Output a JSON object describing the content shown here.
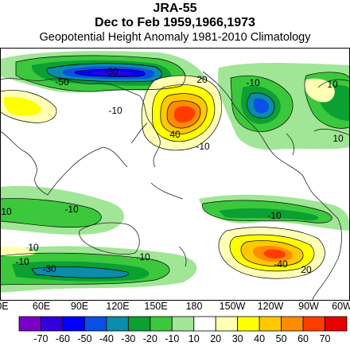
{
  "header": {
    "dataset": "JRA-55",
    "period": "Dec to Feb 1959,1966,1973",
    "subtitle": "Geopotential Height Anomaly  1981-2010 Climatology"
  },
  "lon_labels": [
    "0E",
    "60E",
    "90E",
    "120E",
    "150E",
    "180",
    "150W",
    "120W",
    "90W",
    "60W"
  ],
  "colorbar": {
    "labels": [
      "-70",
      "-60",
      "-50",
      "-40",
      "-30",
      "-20",
      "-10",
      "10",
      "20",
      "30",
      "40",
      "50",
      "60",
      "70"
    ],
    "colors": [
      "#7a00c8",
      "#3200dc",
      "#0000ff",
      "#0a50e6",
      "#0a8caa",
      "#0aa032",
      "#3cc83c",
      "#a0e696",
      "#ffffff",
      "#ffffb4",
      "#ffff00",
      "#ffc800",
      "#ff8c00",
      "#ff3c00",
      "#e60000"
    ]
  },
  "contour_labels": [
    "-30",
    "-50",
    "-10",
    "20",
    "-10",
    "40",
    "-10",
    "10",
    "-10",
    "-10",
    "-10",
    "-10",
    "10",
    "-30",
    "-10",
    "-40",
    "20",
    "10"
  ]
}
